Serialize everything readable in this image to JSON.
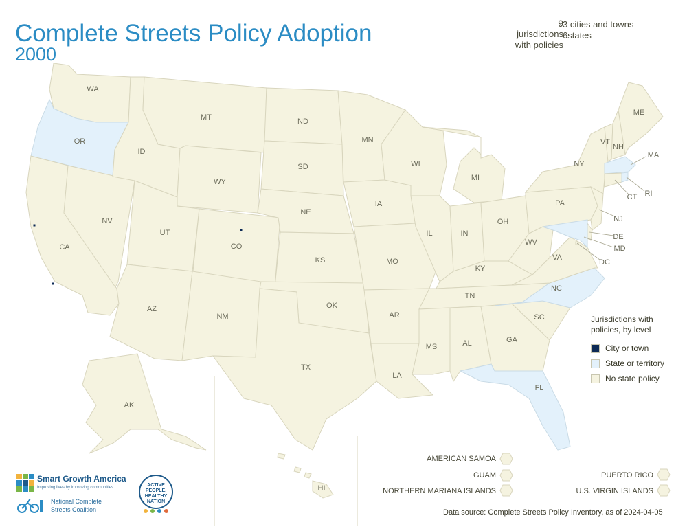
{
  "header": {
    "title": "Complete Streets Policy Adoption",
    "year": "2000"
  },
  "stats": {
    "count": "9",
    "count_label_line1": "jurisdictions",
    "count_label_line2": "with policies",
    "breakdown_line1": "3 cities and towns",
    "breakdown_line2": "6states"
  },
  "colors": {
    "city": "#0d2a55",
    "state": "#e3f1fb",
    "none": "#f5f3e0",
    "title": "#2b8cc4"
  },
  "states": {
    "WA": "WA",
    "OR": "OR",
    "CA": "CA",
    "ID": "ID",
    "NV": "NV",
    "MT": "MT",
    "WY": "WY",
    "UT": "UT",
    "CO": "CO",
    "AZ": "AZ",
    "NM": "NM",
    "ND": "ND",
    "SD": "SD",
    "NE": "NE",
    "KS": "KS",
    "OK": "OK",
    "TX": "TX",
    "MN": "MN",
    "IA": "IA",
    "MO": "MO",
    "AR": "AR",
    "LA": "LA",
    "WI": "WI",
    "IL": "IL",
    "MI": "MI",
    "IN": "IN",
    "OH": "OH",
    "KY": "KY",
    "TN": "TN",
    "MS": "MS",
    "AL": "AL",
    "GA": "GA",
    "FL": "FL",
    "SC": "SC",
    "NC": "NC",
    "VA": "VA",
    "WV": "WV",
    "PA": "PA",
    "NY": "NY",
    "VT": "VT",
    "NH": "NH",
    "ME": "ME",
    "MA": "MA",
    "RI": "RI",
    "CT": "CT",
    "NJ": "NJ",
    "DE": "DE",
    "MD": "MD",
    "DC": "DC",
    "AK": "AK",
    "HI": "HI"
  },
  "policy_states": [
    "OR",
    "NC",
    "FL",
    "MD",
    "MA",
    "RI"
  ],
  "legend": {
    "title_line1": "Jurisdictions with",
    "title_line2": "policies, by level",
    "city": "City or town",
    "state": "State or territory",
    "none": "No state policy"
  },
  "territories": {
    "american_samoa": "AMERICAN SAMOA",
    "guam": "GUAM",
    "northern_mariana": "NORTHERN MARIANA ISLANDS",
    "puerto_rico": "PUERTO RICO",
    "virgin_islands": "U.S. VIRGIN ISLANDS"
  },
  "source": "Data source: Complete Streets Policy Inventory, as of 2024-04-05",
  "logos": {
    "sga_name": "Smart Growth America",
    "sga_tagline": "Improving lives by improving communities",
    "ncsc_line1": "National Complete",
    "ncsc_line2": "Streets Coalition",
    "aphn_line1": "ACTIVE",
    "aphn_line2": "PEOPLE,",
    "aphn_line3": "HEALTHY",
    "aphn_line4": "NATION"
  }
}
